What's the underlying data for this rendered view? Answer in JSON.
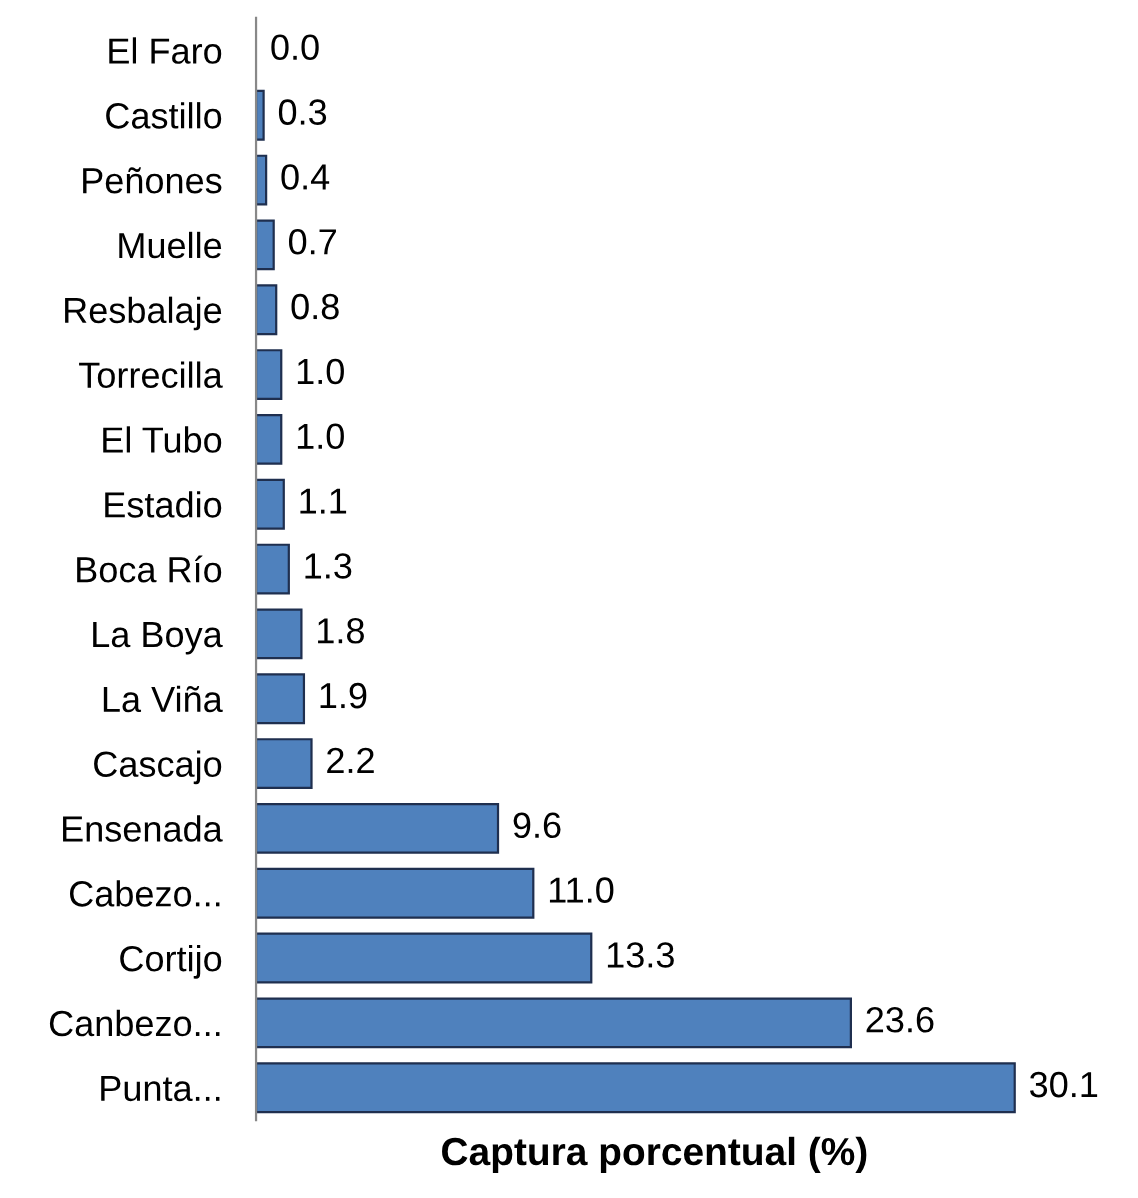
{
  "chart_data": {
    "type": "bar",
    "orientation": "horizontal",
    "xlabel": "Captura porcentual (%)",
    "categories": [
      "El Faro",
      "Castillo",
      "Peñones",
      "Muelle",
      "Resbalaje",
      "Torrecilla",
      "El Tubo",
      "Estadio",
      "Boca Río",
      "La Boya",
      "La Viña",
      "Cascajo",
      "Ensenada",
      "Cabezo...",
      "Cortijo",
      "Canbezo...",
      "Punta..."
    ],
    "values": [
      0.0,
      0.3,
      0.4,
      0.7,
      0.8,
      1.0,
      1.0,
      1.1,
      1.3,
      1.8,
      1.9,
      2.2,
      9.6,
      11.0,
      13.3,
      23.6,
      30.1
    ],
    "value_labels": [
      "0.0",
      "0.3",
      "0.4",
      "0.7",
      "0.8",
      "1.0",
      "1.0",
      "1.1",
      "1.3",
      "1.8",
      "1.9",
      "2.2",
      "9.6",
      "11.0",
      "13.3",
      "23.6",
      "30.1"
    ],
    "color": "#4f81bd",
    "tick_labels": "y",
    "grid": false,
    "legend": false
  }
}
